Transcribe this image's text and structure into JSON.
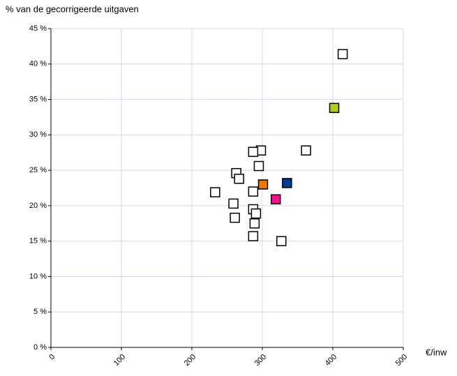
{
  "chart_data": {
    "type": "scatter",
    "ylabel": "% van de gecorrigeerde uitgaven",
    "xlabel": "€/inw",
    "xlim": [
      0,
      500
    ],
    "xticks": [
      0,
      100,
      200,
      300,
      400,
      500
    ],
    "ylim": [
      0,
      45
    ],
    "yticks": [
      {
        "value": 0,
        "label": "0 %"
      },
      {
        "value": 5,
        "label": "5 %"
      },
      {
        "value": 10,
        "label": "10 %"
      },
      {
        "value": 15,
        "label": "15 %"
      },
      {
        "value": 20,
        "label": "20 %"
      },
      {
        "value": 25,
        "label": "25 %"
      },
      {
        "value": 30,
        "label": "30 %"
      },
      {
        "value": 35,
        "label": "35 %"
      },
      {
        "value": 40,
        "label": "40 %"
      },
      {
        "value": 45,
        "label": "45 %"
      }
    ],
    "grid": true,
    "series": [
      {
        "color": "#ffffff",
        "x": [
          414,
          362,
          298,
          287,
          295,
          263,
          267,
          233,
          287,
          259,
          287,
          291,
          261,
          289,
          287,
          327
        ],
        "y": [
          41.4,
          27.8,
          27.8,
          27.6,
          25.6,
          24.6,
          23.8,
          21.9,
          22.0,
          20.3,
          19.5,
          18.9,
          18.3,
          17.5,
          15.7,
          15.0
        ]
      },
      {
        "color": "#b5cc18",
        "x": [
          402
        ],
        "y": [
          33.8
        ]
      },
      {
        "color": "#f07800",
        "x": [
          301
        ],
        "y": [
          23.0
        ]
      },
      {
        "color": "#003c96",
        "x": [
          335
        ],
        "y": [
          23.2
        ]
      },
      {
        "color": "#f0148c",
        "x": [
          319
        ],
        "y": [
          20.9
        ]
      }
    ]
  }
}
